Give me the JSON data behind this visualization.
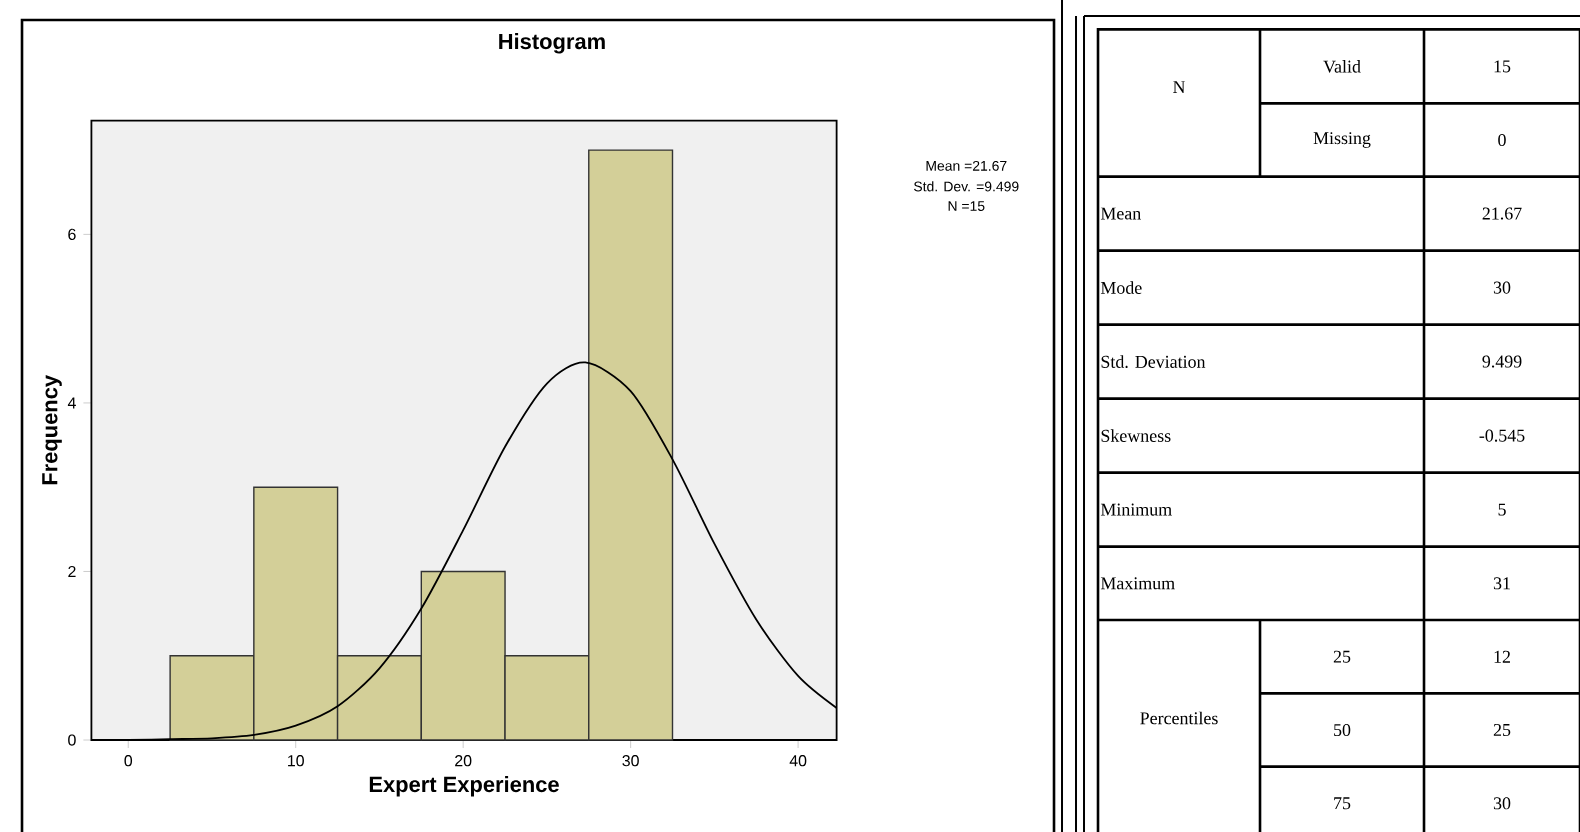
{
  "chart_data": [
    {
      "type": "histogram",
      "title": "Histogram",
      "xlabel": "Expert Experience",
      "ylabel": "Frequency",
      "bins": [
        2.5,
        7.5,
        12.5,
        17.5,
        22.5,
        27.5,
        32.5
      ],
      "series": [
        {
          "type": "histogram",
          "color": "#d3cf98",
          "values": [
            1,
            3,
            1,
            2,
            1,
            7
          ]
        },
        {
          "type": "line",
          "color": "#000000",
          "x": [
            0,
            2.5,
            5,
            7.5,
            10,
            12.5,
            15,
            17.5,
            20,
            22.5,
            25,
            27.3,
            30,
            32.5,
            35,
            37.5,
            40,
            42.3
          ],
          "values": [
            0,
            0.01,
            0.02,
            0.06,
            0.17,
            0.4,
            0.85,
            1.56,
            2.49,
            3.48,
            4.23,
            4.48,
            4.14,
            3.33,
            2.33,
            1.43,
            0.76,
            0.38
          ]
        }
      ],
      "xlim": [
        -2.2,
        42.3
      ],
      "ylim": [
        0,
        7.35
      ],
      "xticks": [
        0,
        10,
        20,
        30,
        40
      ],
      "yticks": [
        0,
        2,
        4,
        6
      ],
      "grid": false,
      "annotations": [
        "Mean =21.67",
        "Std. Dev. =9.499",
        "N =15"
      ]
    },
    {
      "type": "other",
      "annotations": [
        "N",
        "Valid",
        "15",
        "Missing",
        "0",
        "Mean",
        "21.67",
        "Mode",
        "30",
        "Std. Deviation",
        "9.499",
        "Skewness",
        "-0.545",
        "Minimum",
        "5",
        "Maximum",
        "31",
        "Percentiles",
        "25",
        "12",
        "50",
        "25",
        "75",
        "30"
      ]
    }
  ]
}
